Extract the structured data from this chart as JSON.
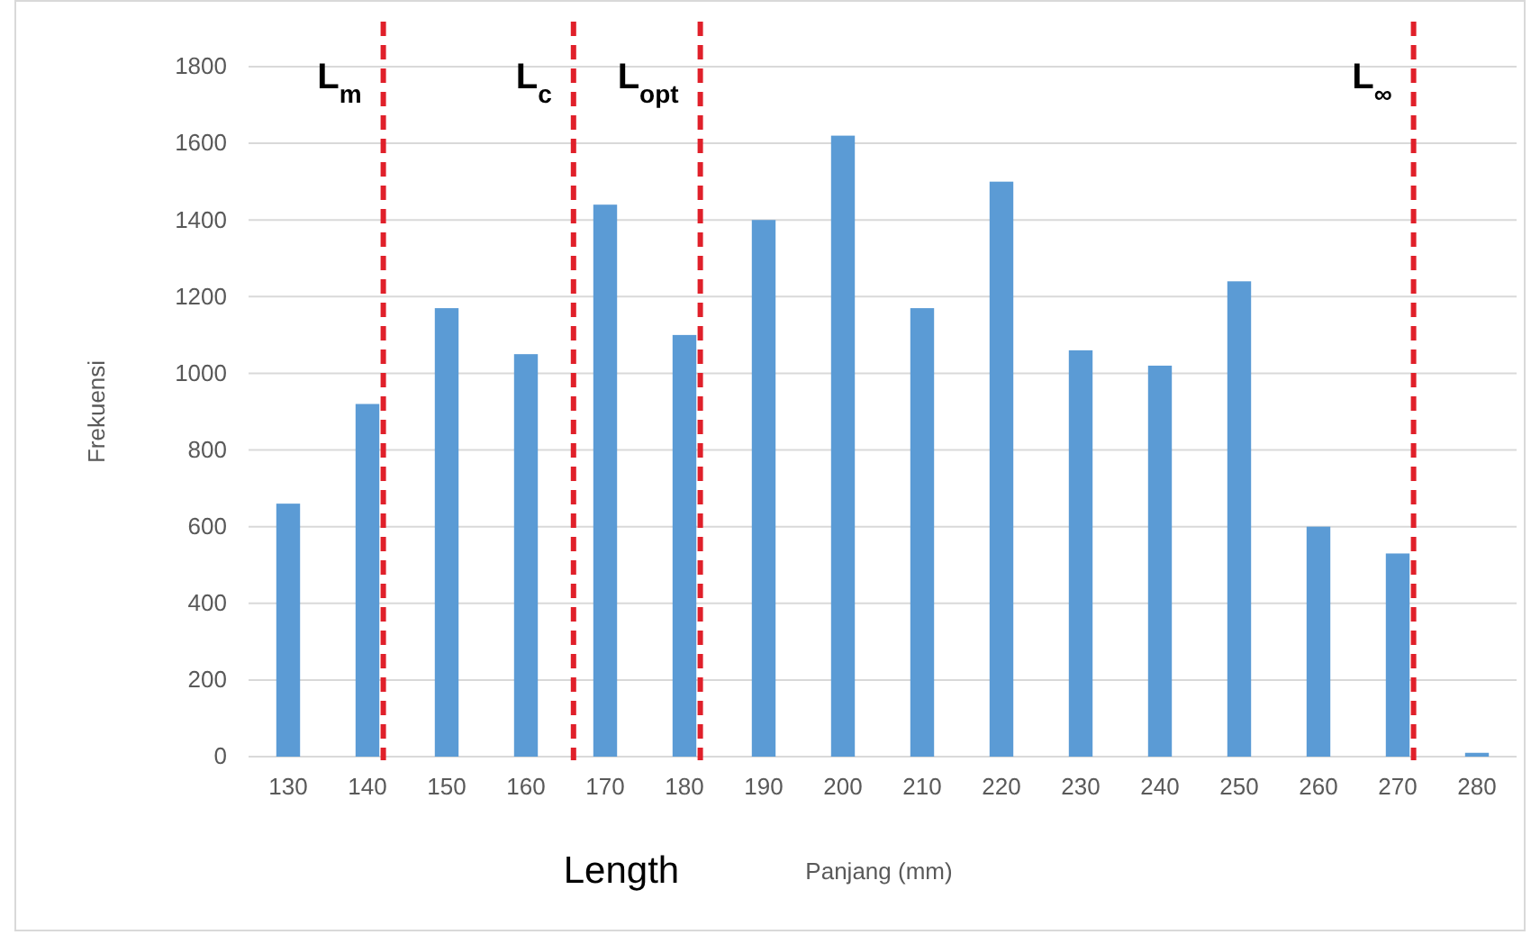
{
  "chart_data": {
    "type": "bar",
    "x": [
      130,
      140,
      150,
      160,
      170,
      180,
      190,
      200,
      210,
      220,
      230,
      240,
      250,
      260,
      270,
      280
    ],
    "values": [
      660,
      920,
      1170,
      1050,
      1440,
      1100,
      1400,
      1620,
      1170,
      1500,
      1060,
      1020,
      1240,
      600,
      530,
      10
    ],
    "color": "#5b9bd5",
    "xlim": [
      125,
      285
    ],
    "xticks": [
      130,
      140,
      150,
      160,
      170,
      180,
      190,
      200,
      210,
      220,
      230,
      240,
      250,
      260,
      270,
      280
    ],
    "ylim": [
      0,
      1800
    ],
    "yticks": [
      0,
      200,
      400,
      600,
      800,
      1000,
      1200,
      1400,
      1600,
      1800
    ],
    "grid": "y",
    "xlabel": "Panjang (mm)",
    "ylabel": "Frekuensi",
    "ref_lines": [
      {
        "axis": "x",
        "value": 142,
        "label": "L$_{m}$",
        "color": "#e0202a",
        "line_style": "dashed"
      },
      {
        "axis": "x",
        "value": 166,
        "label": "L$_{c}$",
        "color": "#e0202a",
        "line_style": "dashed"
      },
      {
        "axis": "x",
        "value": 182,
        "label": "L$_{opt}$",
        "color": "#e0202a",
        "line_style": "dashed"
      },
      {
        "axis": "x",
        "value": 272,
        "label": "L$_{∞}$",
        "color": "#e0202a",
        "line_style": "dashed"
      }
    ],
    "annotations": [
      "Length"
    ]
  }
}
